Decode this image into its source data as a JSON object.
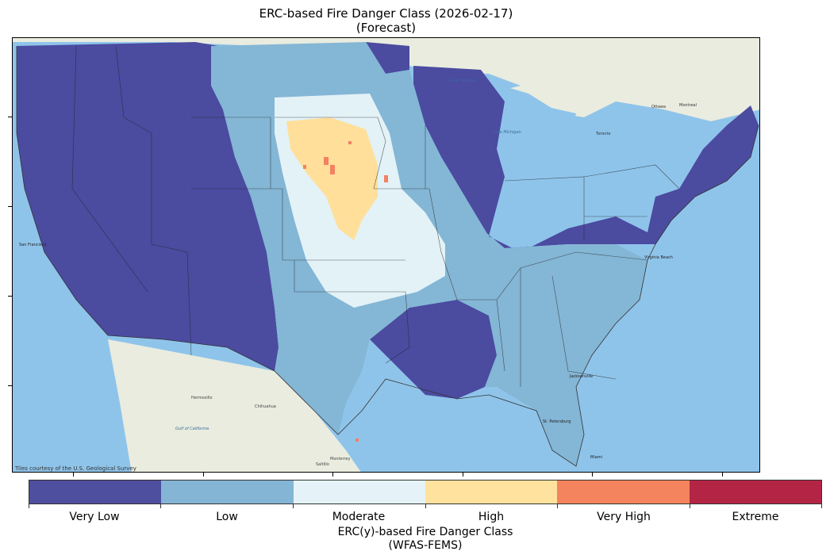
{
  "title": {
    "line1": "ERC-based Fire Danger Class (2026-02-17)",
    "line2": "(Forecast)"
  },
  "map": {
    "attribution": "Tiles courtesy of the U.S. Geological Survey",
    "basemap_labels": {
      "mexico_cities": [
        "Hermosillo",
        "Chihuahua",
        "Monterrey",
        "Saltillo"
      ],
      "mexico_water": "Gulf of California",
      "us_cities": [
        "Jacksonville",
        "St. Petersburg",
        "Miami",
        "Virginia Beach",
        "San Francisco"
      ],
      "canada_cities": [
        "Ottawa",
        "Montreal",
        "Toronto"
      ],
      "lakes": [
        "Lake Superior",
        "Lake Michigan"
      ]
    },
    "colors": {
      "ocean": "#8fc4ea",
      "land_background": "#e9ecdf",
      "very_low": "#4b4ba0",
      "low": "#84b6d5",
      "moderate": "#e3f2f7",
      "high": "#ffdf9a",
      "very_high": "#f28262",
      "extreme": "#b42544"
    }
  },
  "colorbar": {
    "classes": [
      {
        "label": "Very Low",
        "color": "#4e4f9e"
      },
      {
        "label": "Low",
        "color": "#85b5d4"
      },
      {
        "label": "Moderate",
        "color": "#e5f3f8"
      },
      {
        "label": "High",
        "color": "#fee29e"
      },
      {
        "label": "Very High",
        "color": "#f3845e"
      },
      {
        "label": "Extreme",
        "color": "#b42545"
      }
    ],
    "title_line1": "ERC(y)-based Fire Danger Class",
    "title_line2": "(WFAS-FEMS)"
  }
}
